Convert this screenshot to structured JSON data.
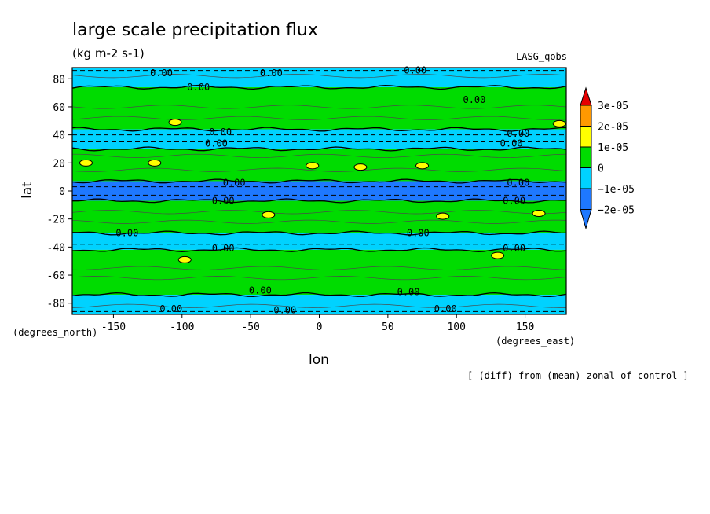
{
  "chart_data": {
    "type": "heatmap",
    "title": "large scale precipitation flux",
    "units": "(kg m-2 s-1)",
    "model_label": "LASG_qobs",
    "xlabel": "lon",
    "ylabel": "lat",
    "x_units": "(degrees_east)",
    "y_units": "(degrees_north)",
    "footnote": "[ (diff) from (mean) zonal of control ]",
    "xlim": [
      -180,
      180
    ],
    "ylim": [
      -88,
      88
    ],
    "x_ticks": [
      -150,
      -100,
      -50,
      0,
      50,
      100,
      150
    ],
    "x_tick_labels": [
      "-150",
      "-100",
      "-50",
      "0",
      "50",
      "100",
      "150"
    ],
    "y_ticks": [
      80,
      60,
      40,
      20,
      0,
      -20,
      -40,
      -60,
      -80
    ],
    "y_tick_labels": [
      "80",
      "60",
      "40",
      "20",
      "0",
      "-20",
      "-40",
      "-60",
      "-80"
    ],
    "colorbar": {
      "colors": [
        "#1e78ff",
        "#00d2ff",
        "#00dc00",
        "#ffff00",
        "#ff9900",
        "#e60000"
      ],
      "labels": [
        "3e-05",
        "2e-05",
        "1e-05",
        "0",
        "−1e-05",
        "−2e-05"
      ],
      "levels": [
        -2e-05,
        -1e-05,
        0,
        1e-05,
        2e-05,
        3e-05
      ]
    },
    "latitude_bands": [
      {
        "lat_from": 88,
        "lat_to": 74,
        "class": 1
      },
      {
        "lat_from": 74,
        "lat_to": 44,
        "class": 2
      },
      {
        "lat_from": 44,
        "lat_to": 30,
        "class": 1
      },
      {
        "lat_from": 30,
        "lat_to": 7,
        "class": 2
      },
      {
        "lat_from": 7,
        "lat_to": -7,
        "class": 0
      },
      {
        "lat_from": -7,
        "lat_to": -30,
        "class": 2
      },
      {
        "lat_from": -30,
        "lat_to": -42,
        "class": 1
      },
      {
        "lat_from": -42,
        "lat_to": -74,
        "class": 2
      },
      {
        "lat_from": -74,
        "lat_to": -88,
        "class": 1
      }
    ],
    "contour_labels": [
      {
        "text": "0.00",
        "lon": -115,
        "lat": 84
      },
      {
        "text": "0.00",
        "lon": -35,
        "lat": 84
      },
      {
        "text": "0.00",
        "lon": 70,
        "lat": 86
      },
      {
        "text": "0.00",
        "lon": -88,
        "lat": 74
      },
      {
        "text": "0.00",
        "lon": 113,
        "lat": 65
      },
      {
        "text": "0.00",
        "lon": -72,
        "lat": 42
      },
      {
        "text": "0.00",
        "lon": -75,
        "lat": 34
      },
      {
        "text": "0.00",
        "lon": 145,
        "lat": 41
      },
      {
        "text": "0.00",
        "lon": 140,
        "lat": 34
      },
      {
        "text": "0.00",
        "lon": -62,
        "lat": 6
      },
      {
        "text": "0.00",
        "lon": 145,
        "lat": 6
      },
      {
        "text": "0.00",
        "lon": -70,
        "lat": -7
      },
      {
        "text": "0.00",
        "lon": 142,
        "lat": -7
      },
      {
        "text": "0.00",
        "lon": -140,
        "lat": -30
      },
      {
        "text": "0.00",
        "lon": 72,
        "lat": -30
      },
      {
        "text": "0.00",
        "lon": -70,
        "lat": -41
      },
      {
        "text": "0.00",
        "lon": 142,
        "lat": -41
      },
      {
        "text": "0.00",
        "lon": -43,
        "lat": -71
      },
      {
        "text": "0.00",
        "lon": 65,
        "lat": -72
      },
      {
        "text": "0.00",
        "lon": -108,
        "lat": -84
      },
      {
        "text": "0.00",
        "lon": -25,
        "lat": -85
      },
      {
        "text": "0.00",
        "lon": 92,
        "lat": -84
      }
    ],
    "yellow_patches": [
      {
        "lon": -170,
        "lat": 20
      },
      {
        "lon": -105,
        "lat": 49
      },
      {
        "lon": -120,
        "lat": 20
      },
      {
        "lon": -5,
        "lat": 18
      },
      {
        "lon": 75,
        "lat": 18
      },
      {
        "lon": 30,
        "lat": 17
      },
      {
        "lon": 175,
        "lat": 48
      },
      {
        "lon": -37,
        "lat": -17
      },
      {
        "lon": -98,
        "lat": -49
      },
      {
        "lon": 90,
        "lat": -18
      },
      {
        "lon": 160,
        "lat": -16
      },
      {
        "lon": 130,
        "lat": -46
      }
    ]
  }
}
